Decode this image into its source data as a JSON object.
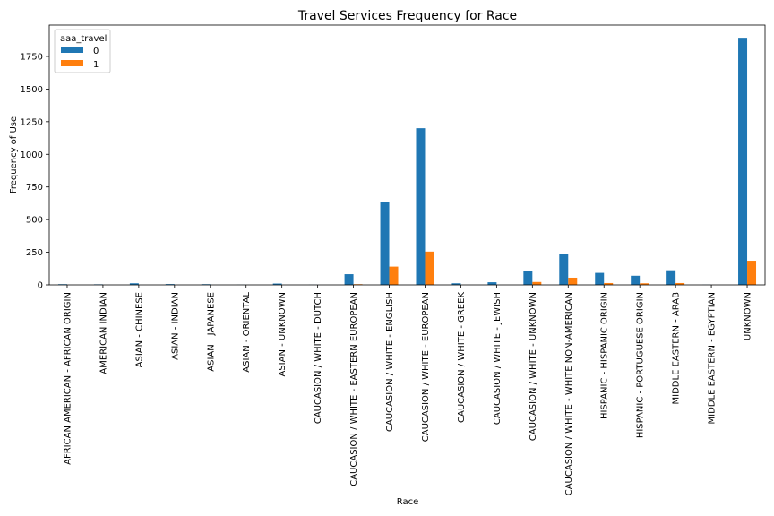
{
  "chart_data": {
    "type": "bar",
    "title": "Travel Services Frequency for Race",
    "xlabel": "Race",
    "ylabel": "Frequency of Use",
    "ylim": [
      0,
      1990
    ],
    "yticks": [
      0,
      250,
      500,
      750,
      1000,
      1250,
      1500,
      1750
    ],
    "legend": {
      "title": "aaa_travel",
      "placement": "top-left"
    },
    "categories": [
      "AFRICAN AMERICAN - AFRICAN ORIGIN",
      "AMERICAN INDIAN",
      "ASIAN - CHINESE",
      "ASIAN - INDIAN",
      "ASIAN - JAPANESE",
      "ASIAN - ORIENTAL",
      "ASIAN - UNKNOWN",
      "CAUCASION / WHITE - DUTCH",
      "CAUCASION / WHITE - EASTERN EUROPEAN",
      "CAUCASION / WHITE - ENGLISH",
      "CAUCASION / WHITE - EUROPEAN",
      "CAUCASION / WHITE - GREEK",
      "CAUCASION / WHITE - JEWISH",
      "CAUCASION / WHITE - UNKNOWN",
      "CAUCASION / WHITE - WHITE NON-AMERICAN",
      "HISPANIC - HISPANIC ORIGIN",
      "HISPANIC - PORTUGUESE ORIGIN",
      "MIDDLE EASTERN - ARAB",
      "MIDDLE EASTERN - EGYPTIAN",
      "UNKNOWN"
    ],
    "series": [
      {
        "name": "0",
        "color": "#1f77b4",
        "values": [
          5,
          4,
          12,
          6,
          5,
          1,
          10,
          1,
          82,
          632,
          1200,
          12,
          20,
          105,
          235,
          92,
          70,
          112,
          1,
          1893
        ]
      },
      {
        "name": "1",
        "color": "#ff7f0e",
        "values": [
          0,
          0,
          0,
          0,
          0,
          0,
          0,
          0,
          5,
          140,
          255,
          0,
          0,
          22,
          55,
          14,
          12,
          14,
          0,
          185
        ]
      }
    ]
  }
}
